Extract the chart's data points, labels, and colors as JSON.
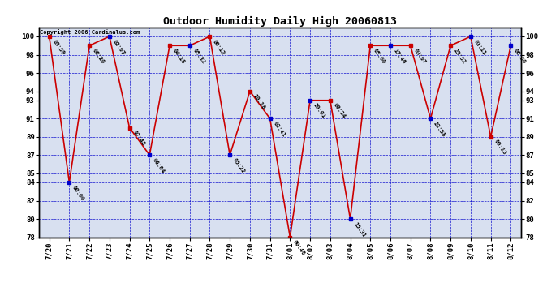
{
  "title": "Outdoor Humidity Daily High 20060813",
  "copyright": "Copyright 2006 Cardinalus.com",
  "fig_bg_color": "#ffffff",
  "plot_bg_color": "#d8e0f0",
  "line_color": "#cc0000",
  "marker_color": "#cc0000",
  "marker_color_alt": "#0000cc",
  "grid_color": "#0000cc",
  "border_color": "#000000",
  "ylim": [
    78,
    101
  ],
  "dates": [
    "7/20",
    "7/21",
    "7/22",
    "7/23",
    "7/24",
    "7/25",
    "7/26",
    "7/27",
    "7/28",
    "7/29",
    "7/30",
    "7/31",
    "8/01",
    "8/02",
    "8/03",
    "8/04",
    "8/05",
    "8/06",
    "8/07",
    "8/08",
    "8/09",
    "8/10",
    "8/11",
    "8/12"
  ],
  "values": [
    100,
    84,
    99,
    100,
    90,
    87,
    99,
    99,
    100,
    87,
    94,
    91,
    78,
    93,
    93,
    80,
    99,
    99,
    99,
    91,
    99,
    100,
    89,
    99
  ],
  "labels": [
    "03:59",
    "00:00",
    "06:20",
    "02:07",
    "07:48",
    "06:04",
    "04:18",
    "05:32",
    "00:12",
    "05:22",
    "10:18",
    "03:41",
    "00:46",
    "20:01",
    "08:34",
    "15:31",
    "05:60",
    "17:46",
    "03:07",
    "23:58",
    "23:52",
    "01:11",
    "00:13",
    "06:50"
  ],
  "ytick_vals": [
    78,
    80,
    82,
    84,
    85,
    87,
    89,
    91,
    93,
    94,
    96,
    98,
    100
  ],
  "ytick_lbls": [
    "78",
    "80",
    "82",
    "84",
    "85",
    "87",
    "89",
    "91",
    "93",
    "94",
    "96",
    "98",
    "100"
  ]
}
